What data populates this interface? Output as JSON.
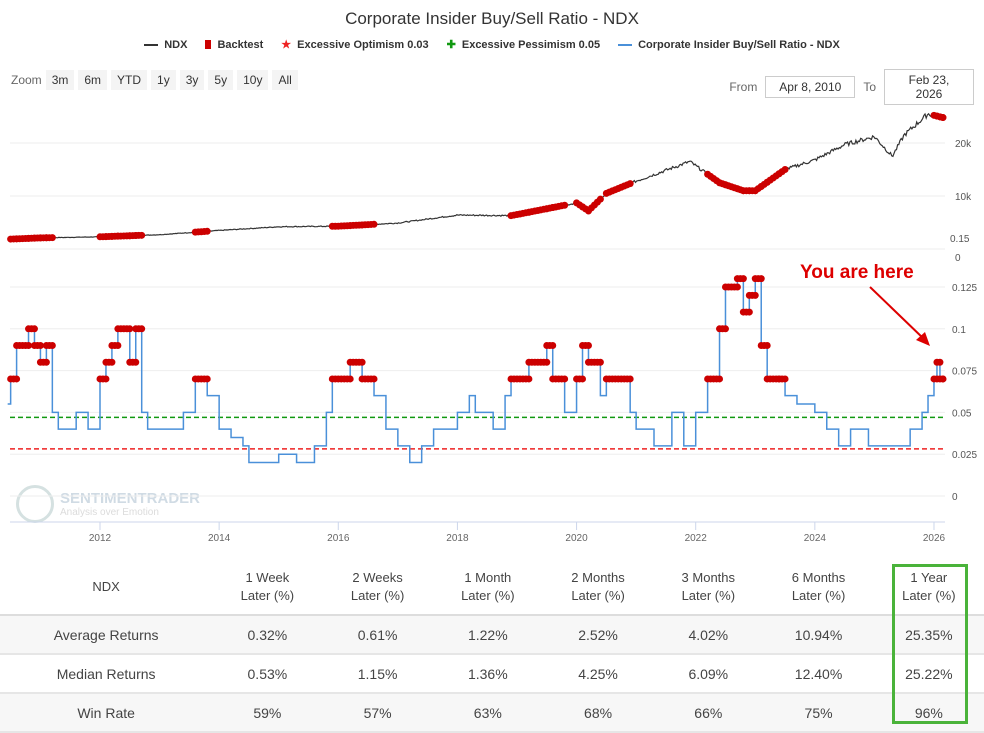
{
  "header": {
    "title": "Corporate Insider Buy/Sell Ratio - NDX"
  },
  "legend": [
    {
      "label": "NDX",
      "color": "#333333",
      "kind": "line"
    },
    {
      "label": "Backtest",
      "color": "#cc0000",
      "kind": "square"
    },
    {
      "label": "Excessive Optimism 0.03",
      "color": "#ee2222",
      "kind": "line"
    },
    {
      "label": "Excessive Pessimism 0.05",
      "color": "#119911",
      "kind": "line"
    },
    {
      "label": "Corporate Insider Buy/Sell Ratio - NDX",
      "color": "#4a90d9",
      "kind": "line"
    }
  ],
  "zoom": {
    "label": "Zoom",
    "buttons": [
      "3m",
      "6m",
      "YTD",
      "1y",
      "3y",
      "5y",
      "10y",
      "All"
    ]
  },
  "range": {
    "from_label": "From",
    "from": "Apr 8, 2010",
    "to_label": "To",
    "to": "Feb 23, 2026"
  },
  "annotation": "You are here",
  "watermark": {
    "name": "SENTIMENTRADER",
    "tagline": "Analysis over Emotion"
  },
  "chart_data": [
    {
      "type": "line",
      "title": "NDX",
      "yticks": [
        "0",
        "10k",
        "20k"
      ],
      "ytick_values": [
        0,
        10000,
        20000
      ],
      "extra_label": "0.15",
      "x": [
        2010.45,
        2011,
        2012,
        2013,
        2014,
        2015,
        2016,
        2017,
        2018,
        2018.9,
        2019,
        2020,
        2020.2,
        2020.5,
        2021,
        2021.9,
        2022.4,
        2022.8,
        2023,
        2023.5,
        2024,
        2024.5,
        2025,
        2025.3,
        2025.5,
        2025.9,
        2026.15
      ],
      "y": [
        1850,
        2100,
        2300,
        2700,
        3500,
        4200,
        4300,
        4900,
        6400,
        6300,
        6500,
        8700,
        7200,
        10500,
        12800,
        16500,
        12500,
        11000,
        11000,
        15000,
        16800,
        19700,
        21200,
        17500,
        21500,
        25500,
        24800
      ]
    },
    {
      "type": "line",
      "title": "Corporate Insider Buy/Sell Ratio - NDX",
      "yticks": [
        "0",
        "0.025",
        "0.05",
        "0.075",
        "0.1",
        "0.125"
      ],
      "ytick_values": [
        0,
        0.025,
        0.05,
        0.075,
        0.1,
        0.125
      ],
      "xticks": [
        "2012",
        "2014",
        "2016",
        "2018",
        "2020",
        "2022",
        "2024",
        "2026"
      ],
      "thresholds": {
        "optimism": 0.03,
        "pessimism": 0.05
      },
      "backtest_min": 0.065,
      "x": [
        2010.45,
        2010.5,
        2010.6,
        2010.8,
        2010.9,
        2011.0,
        2011.1,
        2011.2,
        2011.3,
        2011.6,
        2011.8,
        2012.0,
        2012.1,
        2012.2,
        2012.3,
        2012.5,
        2012.6,
        2012.7,
        2012.8,
        2013.1,
        2013.4,
        2013.6,
        2013.8,
        2014.0,
        2014.2,
        2014.4,
        2014.5,
        2015.0,
        2015.3,
        2015.6,
        2015.8,
        2015.9,
        2016.2,
        2016.4,
        2016.6,
        2016.8,
        2017.0,
        2017.2,
        2017.4,
        2017.6,
        2018.0,
        2018.2,
        2018.3,
        2018.6,
        2018.8,
        2018.9,
        2019.2,
        2019.5,
        2019.6,
        2019.8,
        2020.0,
        2020.1,
        2020.2,
        2020.4,
        2020.5,
        2020.9,
        2021.0,
        2021.3,
        2021.6,
        2021.8,
        2022.0,
        2022.2,
        2022.4,
        2022.5,
        2022.7,
        2022.8,
        2022.9,
        2023.0,
        2023.1,
        2023.2,
        2023.4,
        2023.5,
        2023.7,
        2024.0,
        2024.2,
        2024.4,
        2024.6,
        2024.9,
        2025.1,
        2025.4,
        2025.6,
        2025.8,
        2025.9,
        2026.0,
        2026.05,
        2026.1,
        2026.15
      ],
      "y": [
        0.055,
        0.07,
        0.09,
        0.1,
        0.09,
        0.08,
        0.09,
        0.05,
        0.04,
        0.05,
        0.04,
        0.07,
        0.08,
        0.09,
        0.1,
        0.08,
        0.1,
        0.05,
        0.04,
        0.04,
        0.05,
        0.07,
        0.06,
        0.04,
        0.035,
        0.03,
        0.02,
        0.025,
        0.02,
        0.03,
        0.05,
        0.07,
        0.08,
        0.07,
        0.06,
        0.04,
        0.03,
        0.02,
        0.03,
        0.04,
        0.05,
        0.06,
        0.05,
        0.04,
        0.06,
        0.07,
        0.08,
        0.09,
        0.07,
        0.05,
        0.07,
        0.09,
        0.08,
        0.06,
        0.07,
        0.05,
        0.04,
        0.03,
        0.05,
        0.03,
        0.05,
        0.07,
        0.1,
        0.125,
        0.13,
        0.11,
        0.12,
        0.13,
        0.09,
        0.07,
        0.07,
        0.06,
        0.055,
        0.05,
        0.04,
        0.03,
        0.04,
        0.03,
        0.03,
        0.03,
        0.04,
        0.05,
        0.06,
        0.07,
        0.08,
        0.07,
        0.07
      ]
    }
  ],
  "table": {
    "headers": [
      [
        "NDX",
        ""
      ],
      [
        "1 Week",
        "Later (%)"
      ],
      [
        "2 Weeks",
        "Later (%)"
      ],
      [
        "1 Month",
        "Later (%)"
      ],
      [
        "2 Months",
        "Later (%)"
      ],
      [
        "3 Months",
        "Later (%)"
      ],
      [
        "6 Months",
        "Later (%)"
      ],
      [
        "1 Year",
        "Later (%)"
      ]
    ],
    "rows": [
      [
        "Average Returns",
        "0.32%",
        "0.61%",
        "1.22%",
        "2.52%",
        "4.02%",
        "10.94%",
        "25.35%"
      ],
      [
        "Median Returns",
        "0.53%",
        "1.15%",
        "1.36%",
        "4.25%",
        "6.09%",
        "12.40%",
        "25.22%"
      ],
      [
        "Win Rate",
        "59%",
        "57%",
        "63%",
        "68%",
        "66%",
        "75%",
        "96%"
      ]
    ]
  }
}
